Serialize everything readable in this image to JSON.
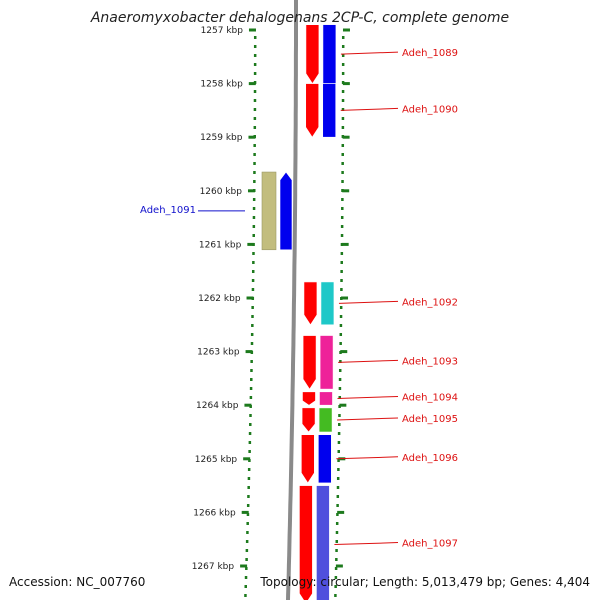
{
  "title": "Anaeromyxobacter dehalogenans 2CP-C, complete genome",
  "accession_text": "Accession: NC_007760",
  "topology_text": "Topology: circular; Length: 5,013,479 bp; Genes: 4,404",
  "colors": {
    "ring": "#8c8c8c",
    "tick_dots": "#1d7a1d",
    "forward_label": "#dd1111",
    "reverse_label": "#1111cc",
    "leader_forward": "#dd1111",
    "leader_reverse": "#1111cc"
  },
  "ticks": [
    {
      "label": "1257 kbp",
      "kbp": 1257
    },
    {
      "label": "1258 kbp",
      "kbp": 1258
    },
    {
      "label": "1259 kbp",
      "kbp": 1259
    },
    {
      "label": "1260 kbp",
      "kbp": 1260
    },
    {
      "label": "1261 kbp",
      "kbp": 1261
    },
    {
      "label": "1262 kbp",
      "kbp": 1262
    },
    {
      "label": "1263 kbp",
      "kbp": 1263
    },
    {
      "label": "1264 kbp",
      "kbp": 1264
    },
    {
      "label": "1265 kbp",
      "kbp": 1265
    },
    {
      "label": "1266 kbp",
      "kbp": 1266
    },
    {
      "label": "1267 kbp",
      "kbp": 1267
    }
  ],
  "genes": [
    {
      "label": "Adeh_1089",
      "strand": "+",
      "start_kbp": 1256.9,
      "end_kbp": 1258.0,
      "track_color": "#ff0000",
      "cat_color": "#0000ee"
    },
    {
      "label": "Adeh_1090",
      "strand": "+",
      "start_kbp": 1258.0,
      "end_kbp": 1259.0,
      "track_color": "#ff0000",
      "cat_color": "#0000ee"
    },
    {
      "label": "Adeh_1091",
      "strand": "-",
      "start_kbp": 1259.65,
      "end_kbp": 1261.1,
      "track_color": "#0000ee",
      "cat_color": "#c2bd7e"
    },
    {
      "label": "Adeh_1092",
      "strand": "+",
      "start_kbp": 1261.7,
      "end_kbp": 1262.5,
      "track_color": "#ff0000",
      "cat_color": "#1ec8c8"
    },
    {
      "label": "Adeh_1093",
      "strand": "+",
      "start_kbp": 1262.7,
      "end_kbp": 1263.7,
      "track_color": "#ff0000",
      "cat_color": "#ee2299"
    },
    {
      "label": "Adeh_1094",
      "strand": "+",
      "start_kbp": 1263.75,
      "end_kbp": 1264.0,
      "track_color": "#ff0000",
      "cat_color": "#ee2299"
    },
    {
      "label": "Adeh_1095",
      "strand": "+",
      "start_kbp": 1264.05,
      "end_kbp": 1264.5,
      "track_color": "#ff0000",
      "cat_color": "#44bb22"
    },
    {
      "label": "Adeh_1096",
      "strand": "+",
      "start_kbp": 1264.55,
      "end_kbp": 1265.45,
      "track_color": "#ff0000",
      "cat_color": "#0000ee"
    },
    {
      "label": "Adeh_1097",
      "strand": "+",
      "start_kbp": 1265.5,
      "end_kbp": 1267.7,
      "track_color": "#ff0000",
      "cat_color": "#5050dd"
    }
  ]
}
